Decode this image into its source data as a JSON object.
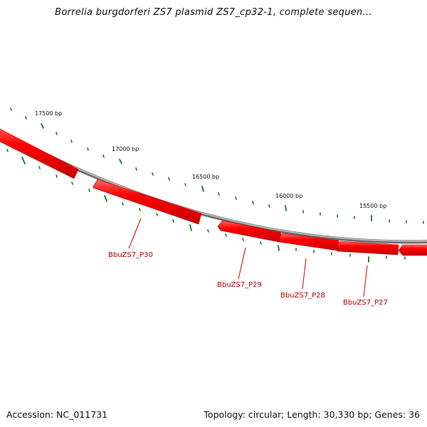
{
  "title": "Borrelia burgdorferi ZS7 plasmid ZS7_cp32-1, complete sequen...",
  "footer": {
    "accession_label": "Accession: NC_011731",
    "summary_label": "Topology: circular; Length: 30,330 bp; Genes: 36"
  },
  "colors": {
    "backbone": "#8a8a8a",
    "gene_fill": "#ff0000",
    "gene_highlight": "#ff8080",
    "gene_shadow": "#c00000",
    "tick": "#1a7a1a",
    "gene_label": "#b00000"
  },
  "scale_labels": [
    {
      "id": "17500",
      "text": "17500 bp"
    },
    {
      "id": "17000",
      "text": "17000 bp"
    },
    {
      "id": "16500",
      "text": "16500 bp"
    },
    {
      "id": "16000",
      "text": "16000 bp"
    },
    {
      "id": "15500",
      "text": "15500 bp"
    }
  ],
  "genes": [
    {
      "id": "p30",
      "name": "BbuZS7_P30"
    },
    {
      "id": "p29",
      "name": "BbuZS7_P29"
    },
    {
      "id": "p28",
      "name": "BbuZS7_P28"
    },
    {
      "id": "p27",
      "name": "BbuZS7_P27"
    }
  ]
}
